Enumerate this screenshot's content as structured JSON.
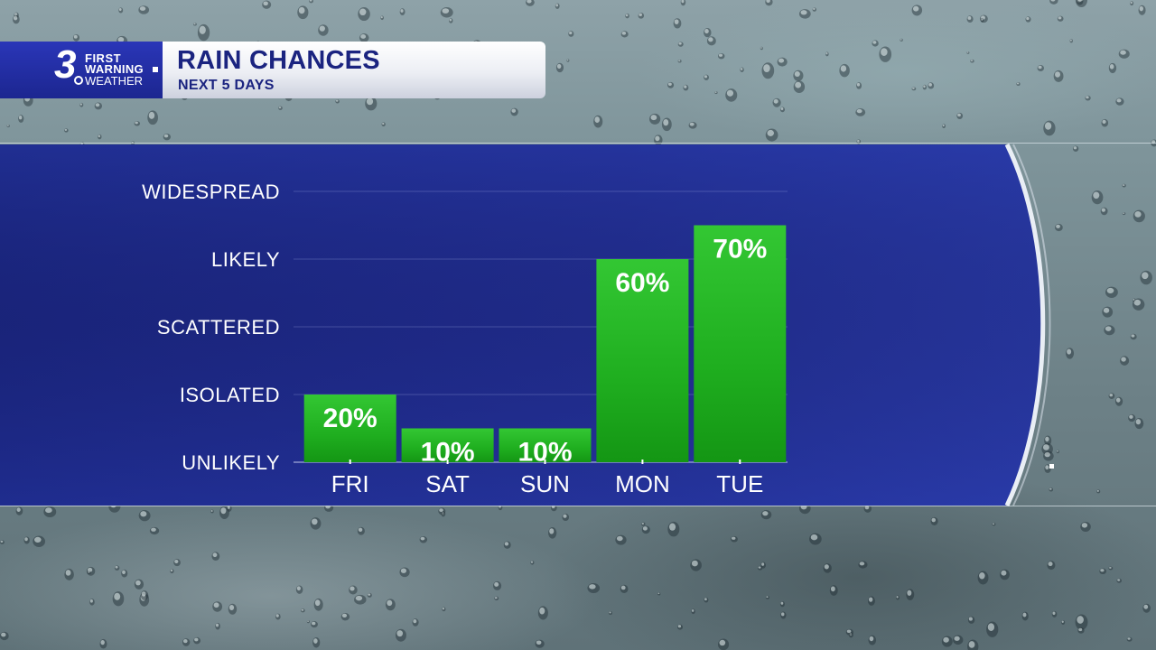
{
  "header": {
    "logo": {
      "number": "3",
      "line1": "FIRST",
      "line2": "WARNING",
      "line3": "WEATHER"
    },
    "title": "RAIN CHANCES",
    "subtitle": "NEXT 5 DAYS"
  },
  "chart_data": {
    "type": "bar",
    "title": "RAIN CHANCES",
    "subtitle": "NEXT 5 DAYS",
    "categories": [
      "FRI",
      "SAT",
      "SUN",
      "MON",
      "TUE"
    ],
    "values": [
      20,
      10,
      10,
      60,
      70
    ],
    "value_labels": [
      "20%",
      "10%",
      "10%",
      "60%",
      "70%"
    ],
    "unit": "%",
    "y_tick_labels": [
      "UNLIKELY",
      "ISOLATED",
      "SCATTERED",
      "LIKELY",
      "WIDESPREAD"
    ],
    "y_tick_values": [
      0,
      20,
      40,
      60,
      80
    ],
    "ylim": [
      0,
      80
    ],
    "grid": true,
    "legend": "none",
    "bar_color": "#22b022"
  },
  "colors": {
    "panel": "#1f2b8c",
    "bar_top": "#2fc12f",
    "bar_bottom": "#169a16",
    "logo_bg": "#2130a8",
    "title_text": "#1b2480"
  }
}
